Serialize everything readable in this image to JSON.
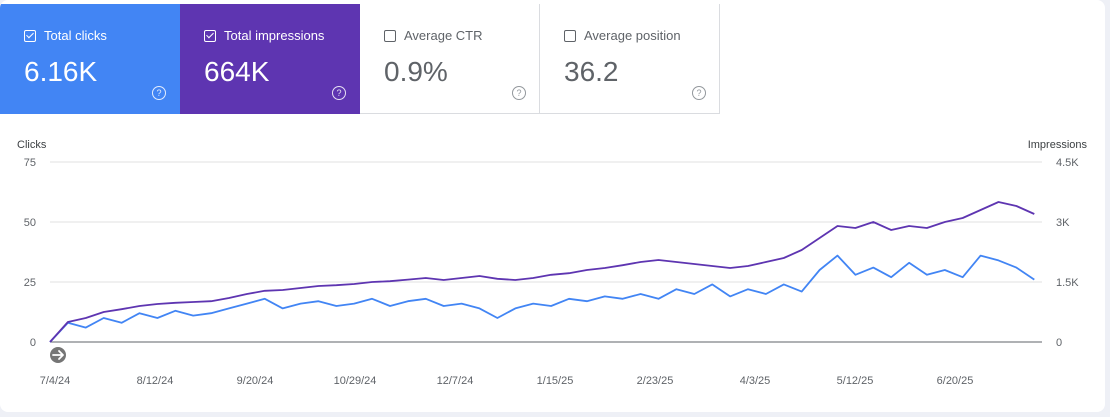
{
  "metrics": [
    {
      "key": "clicks",
      "label": "Total clicks",
      "value": "6.16K",
      "checked": true
    },
    {
      "key": "impr",
      "label": "Total impressions",
      "value": "664K",
      "checked": true
    },
    {
      "key": "ctr",
      "label": "Average CTR",
      "value": "0.9%",
      "checked": false
    },
    {
      "key": "pos",
      "label": "Average position",
      "value": "36.2",
      "checked": false
    }
  ],
  "help_glyph": "?",
  "chart_data": {
    "type": "line",
    "left_axis": {
      "title": "Clicks",
      "ticks": [
        "0",
        "25",
        "50",
        "75"
      ],
      "range": [
        0,
        75
      ]
    },
    "right_axis": {
      "title": "Impressions",
      "ticks": [
        "0",
        "1.5K",
        "3K",
        "4.5K"
      ],
      "range": [
        0,
        4500
      ]
    },
    "x_tick_labels": [
      "7/4/24",
      "8/12/24",
      "9/20/24",
      "10/29/24",
      "12/7/24",
      "1/15/25",
      "2/23/25",
      "4/3/25",
      "5/12/25",
      "6/20/25"
    ],
    "x_range": [
      "7/4/24",
      "7/27/25"
    ],
    "grid": true,
    "colors": {
      "clicks": "#4285f4",
      "impressions": "#5e35b1"
    },
    "series": [
      {
        "name": "Clicks",
        "axis": "left",
        "points": [
          [
            "7/4/24",
            0
          ],
          [
            "7/11/24",
            8
          ],
          [
            "7/18/24",
            6
          ],
          [
            "7/25/24",
            10
          ],
          [
            "8/1/24",
            8
          ],
          [
            "8/8/24",
            12
          ],
          [
            "8/15/24",
            10
          ],
          [
            "8/22/24",
            13
          ],
          [
            "8/29/24",
            11
          ],
          [
            "9/5/24",
            12
          ],
          [
            "9/12/24",
            14
          ],
          [
            "9/19/24",
            16
          ],
          [
            "9/26/24",
            18
          ],
          [
            "10/3/24",
            14
          ],
          [
            "10/10/24",
            16
          ],
          [
            "10/17/24",
            17
          ],
          [
            "10/24/24",
            15
          ],
          [
            "10/31/24",
            16
          ],
          [
            "11/7/24",
            18
          ],
          [
            "11/14/24",
            15
          ],
          [
            "11/21/24",
            17
          ],
          [
            "11/28/24",
            18
          ],
          [
            "12/5/24",
            15
          ],
          [
            "12/12/24",
            16
          ],
          [
            "12/19/24",
            14
          ],
          [
            "12/26/24",
            10
          ],
          [
            "1/2/25",
            14
          ],
          [
            "1/9/25",
            16
          ],
          [
            "1/16/25",
            15
          ],
          [
            "1/23/25",
            18
          ],
          [
            "1/30/25",
            17
          ],
          [
            "2/6/25",
            19
          ],
          [
            "2/13/25",
            18
          ],
          [
            "2/20/25",
            20
          ],
          [
            "2/27/25",
            18
          ],
          [
            "3/6/25",
            22
          ],
          [
            "3/13/25",
            20
          ],
          [
            "3/20/25",
            24
          ],
          [
            "3/27/25",
            19
          ],
          [
            "4/3/25",
            22
          ],
          [
            "4/10/25",
            20
          ],
          [
            "4/17/25",
            24
          ],
          [
            "4/24/25",
            21
          ],
          [
            "5/1/25",
            30
          ],
          [
            "5/8/25",
            36
          ],
          [
            "5/15/25",
            28
          ],
          [
            "5/22/25",
            31
          ],
          [
            "5/29/25",
            27
          ],
          [
            "6/5/25",
            33
          ],
          [
            "6/12/25",
            28
          ],
          [
            "6/19/25",
            30
          ],
          [
            "6/26/25",
            27
          ],
          [
            "7/3/25",
            36
          ],
          [
            "7/10/25",
            34
          ],
          [
            "7/17/25",
            31
          ],
          [
            "7/24/25",
            26
          ]
        ]
      },
      {
        "name": "Impressions",
        "axis": "right",
        "points": [
          [
            "7/4/24",
            0
          ],
          [
            "7/11/24",
            500
          ],
          [
            "7/18/24",
            600
          ],
          [
            "7/25/24",
            750
          ],
          [
            "8/1/24",
            820
          ],
          [
            "8/8/24",
            900
          ],
          [
            "8/15/24",
            950
          ],
          [
            "8/22/24",
            980
          ],
          [
            "8/29/24",
            1000
          ],
          [
            "9/5/24",
            1020
          ],
          [
            "9/12/24",
            1100
          ],
          [
            "9/19/24",
            1200
          ],
          [
            "9/26/24",
            1280
          ],
          [
            "10/3/24",
            1300
          ],
          [
            "10/10/24",
            1350
          ],
          [
            "10/17/24",
            1400
          ],
          [
            "10/24/24",
            1420
          ],
          [
            "10/31/24",
            1450
          ],
          [
            "11/7/24",
            1500
          ],
          [
            "11/14/24",
            1520
          ],
          [
            "11/21/24",
            1560
          ],
          [
            "11/28/24",
            1600
          ],
          [
            "12/5/24",
            1550
          ],
          [
            "12/12/24",
            1600
          ],
          [
            "12/19/24",
            1650
          ],
          [
            "12/26/24",
            1580
          ],
          [
            "1/2/25",
            1550
          ],
          [
            "1/9/25",
            1600
          ],
          [
            "1/16/25",
            1680
          ],
          [
            "1/23/25",
            1720
          ],
          [
            "1/30/25",
            1800
          ],
          [
            "2/6/25",
            1850
          ],
          [
            "2/13/25",
            1920
          ],
          [
            "2/20/25",
            2000
          ],
          [
            "2/27/25",
            2050
          ],
          [
            "3/6/25",
            2000
          ],
          [
            "3/13/25",
            1950
          ],
          [
            "3/20/25",
            1900
          ],
          [
            "3/27/25",
            1850
          ],
          [
            "4/3/25",
            1900
          ],
          [
            "4/10/25",
            2000
          ],
          [
            "4/17/25",
            2100
          ],
          [
            "4/24/25",
            2300
          ],
          [
            "5/1/25",
            2600
          ],
          [
            "5/8/25",
            2900
          ],
          [
            "5/15/25",
            2850
          ],
          [
            "5/22/25",
            3000
          ],
          [
            "5/29/25",
            2800
          ],
          [
            "6/5/25",
            2900
          ],
          [
            "6/12/25",
            2850
          ],
          [
            "6/19/25",
            3000
          ],
          [
            "6/26/25",
            3100
          ],
          [
            "7/3/25",
            3300
          ],
          [
            "7/10/25",
            3500
          ],
          [
            "7/17/25",
            3400
          ],
          [
            "7/24/25",
            3200
          ]
        ]
      }
    ]
  }
}
